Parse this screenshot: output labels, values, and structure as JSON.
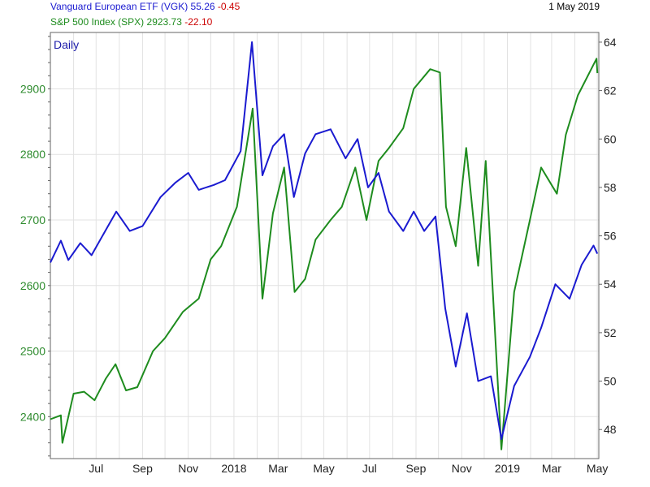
{
  "header": {
    "vgk_label": "Vanguard European ETF (VGK)",
    "vgk_price": "55.26",
    "vgk_change": "-0.45",
    "spx_label": "S&P 500 Index (SPX)",
    "spx_price": "2923.73",
    "spx_change": "-22.10",
    "date": "1 May 2019"
  },
  "colors": {
    "vgk": "#1a1ad0",
    "spx": "#1e8c1e",
    "grid": "#e2e2e2",
    "border": "#666666"
  },
  "chart_data": {
    "type": "line",
    "interval_label": "Daily",
    "x_ticks": [
      "Jul",
      "Sep",
      "Nov",
      "2018",
      "Mar",
      "May",
      "Jul",
      "Sep",
      "Nov",
      "2019",
      "Mar",
      "May"
    ],
    "x_range": [
      "2017-05-01",
      "2019-05-03"
    ],
    "y_left": {
      "series": "S&P 500 Index (SPX)",
      "ticks": [
        2400,
        2500,
        2600,
        2700,
        2800,
        2900
      ],
      "range": [
        2336,
        2986
      ]
    },
    "y_right": {
      "series": "Vanguard European ETF (VGK)",
      "ticks": [
        48,
        50,
        52,
        54,
        56,
        58,
        60,
        62,
        64
      ],
      "range": [
        46.8,
        64.4
      ]
    },
    "series": [
      {
        "name": "S&P 500 Index (SPX)",
        "axis": "left",
        "points": [
          [
            "2017-05-01",
            2396
          ],
          [
            "2017-05-15",
            2402
          ],
          [
            "2017-05-17",
            2360
          ],
          [
            "2017-06-01",
            2435
          ],
          [
            "2017-06-15",
            2438
          ],
          [
            "2017-06-29",
            2425
          ],
          [
            "2017-07-14",
            2458
          ],
          [
            "2017-07-27",
            2480
          ],
          [
            "2017-08-10",
            2440
          ],
          [
            "2017-08-25",
            2445
          ],
          [
            "2017-09-15",
            2500
          ],
          [
            "2017-10-01",
            2520
          ],
          [
            "2017-10-25",
            2560
          ],
          [
            "2017-11-15",
            2580
          ],
          [
            "2017-12-01",
            2640
          ],
          [
            "2017-12-15",
            2660
          ],
          [
            "2018-01-05",
            2720
          ],
          [
            "2018-01-26",
            2870
          ],
          [
            "2018-02-08",
            2580
          ],
          [
            "2018-02-22",
            2710
          ],
          [
            "2018-03-09",
            2780
          ],
          [
            "2018-03-23",
            2590
          ],
          [
            "2018-04-06",
            2610
          ],
          [
            "2018-04-20",
            2670
          ],
          [
            "2018-05-10",
            2700
          ],
          [
            "2018-05-25",
            2720
          ],
          [
            "2018-06-12",
            2780
          ],
          [
            "2018-06-27",
            2700
          ],
          [
            "2018-07-13",
            2790
          ],
          [
            "2018-07-27",
            2810
          ],
          [
            "2018-08-15",
            2840
          ],
          [
            "2018-08-29",
            2900
          ],
          [
            "2018-09-20",
            2930
          ],
          [
            "2018-10-03",
            2925
          ],
          [
            "2018-10-11",
            2720
          ],
          [
            "2018-10-24",
            2660
          ],
          [
            "2018-11-07",
            2810
          ],
          [
            "2018-11-23",
            2630
          ],
          [
            "2018-12-03",
            2790
          ],
          [
            "2018-12-24",
            2350
          ],
          [
            "2019-01-10",
            2590
          ],
          [
            "2019-01-31",
            2700
          ],
          [
            "2019-02-15",
            2780
          ],
          [
            "2019-03-08",
            2740
          ],
          [
            "2019-03-20",
            2830
          ],
          [
            "2019-04-05",
            2890
          ],
          [
            "2019-04-30",
            2946
          ],
          [
            "2019-05-01",
            2924
          ]
        ]
      },
      {
        "name": "Vanguard European ETF (VGK)",
        "axis": "right",
        "points": [
          [
            "2017-05-01",
            54.9
          ],
          [
            "2017-05-15",
            55.8
          ],
          [
            "2017-05-25",
            55.0
          ],
          [
            "2017-06-10",
            55.7
          ],
          [
            "2017-06-25",
            55.2
          ],
          [
            "2017-07-15",
            56.3
          ],
          [
            "2017-07-28",
            57.0
          ],
          [
            "2017-08-15",
            56.2
          ],
          [
            "2017-09-01",
            56.4
          ],
          [
            "2017-09-25",
            57.6
          ],
          [
            "2017-10-15",
            58.2
          ],
          [
            "2017-11-01",
            58.6
          ],
          [
            "2017-11-15",
            57.9
          ],
          [
            "2017-12-05",
            58.1
          ],
          [
            "2017-12-20",
            58.3
          ],
          [
            "2018-01-10",
            59.5
          ],
          [
            "2018-01-25",
            64.0
          ],
          [
            "2018-02-08",
            58.5
          ],
          [
            "2018-02-22",
            59.7
          ],
          [
            "2018-03-09",
            60.2
          ],
          [
            "2018-03-22",
            57.6
          ],
          [
            "2018-04-06",
            59.4
          ],
          [
            "2018-04-20",
            60.2
          ],
          [
            "2018-05-10",
            60.4
          ],
          [
            "2018-05-30",
            59.2
          ],
          [
            "2018-06-15",
            60.0
          ],
          [
            "2018-06-29",
            58.0
          ],
          [
            "2018-07-13",
            58.6
          ],
          [
            "2018-07-27",
            57.0
          ],
          [
            "2018-08-15",
            56.2
          ],
          [
            "2018-08-29",
            57.0
          ],
          [
            "2018-09-12",
            56.2
          ],
          [
            "2018-09-27",
            56.8
          ],
          [
            "2018-10-10",
            53.0
          ],
          [
            "2018-10-24",
            50.6
          ],
          [
            "2018-11-08",
            52.8
          ],
          [
            "2018-11-23",
            50.0
          ],
          [
            "2018-12-10",
            50.2
          ],
          [
            "2018-12-24",
            47.6
          ],
          [
            "2019-01-10",
            49.8
          ],
          [
            "2019-01-31",
            51.0
          ],
          [
            "2019-02-15",
            52.2
          ],
          [
            "2019-03-06",
            54.0
          ],
          [
            "2019-03-25",
            53.4
          ],
          [
            "2019-04-10",
            54.8
          ],
          [
            "2019-04-26",
            55.6
          ],
          [
            "2019-05-01",
            55.26
          ]
        ]
      }
    ]
  }
}
